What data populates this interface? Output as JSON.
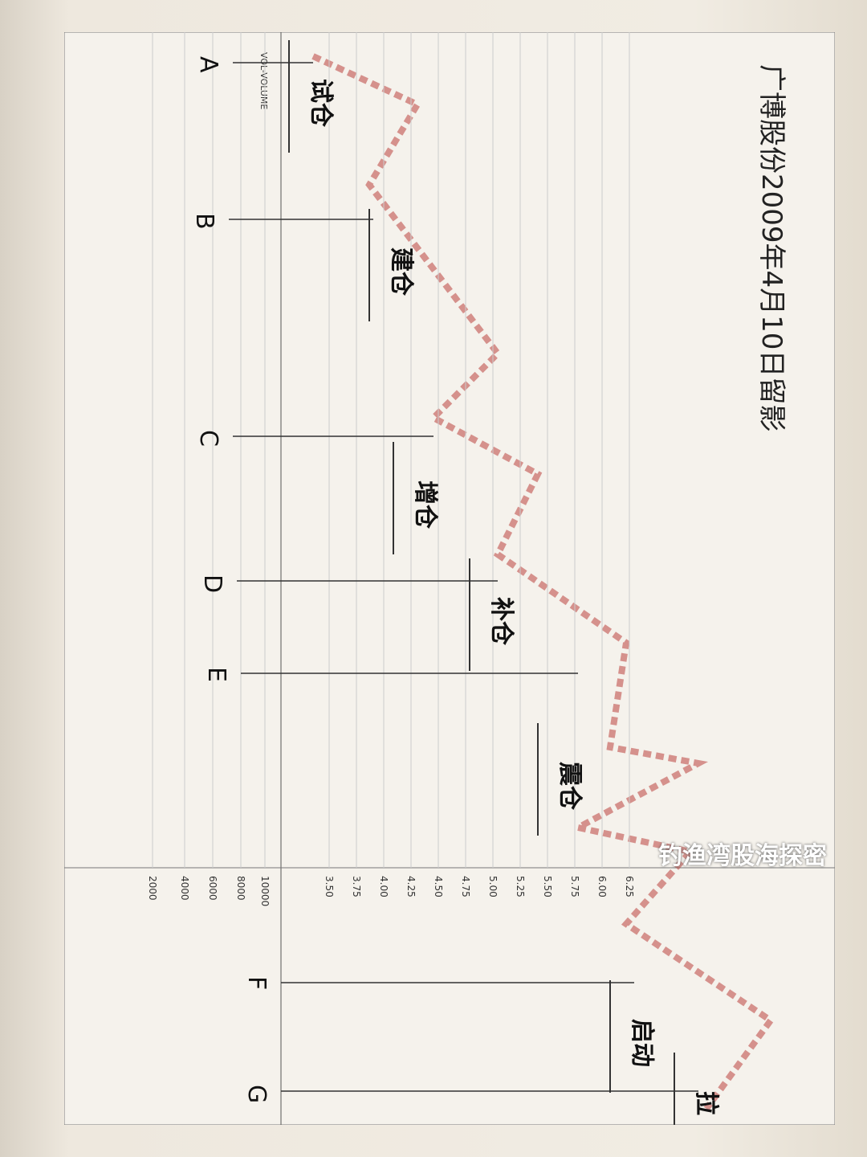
{
  "page": {
    "title": "广博股份2009年4月10日留影",
    "stages": [
      "试仓",
      "建仓",
      "增仓",
      "补仓",
      "震仓",
      "启动",
      "拉"
    ],
    "points": [
      "A",
      "B",
      "C",
      "D",
      "E",
      "F",
      "G"
    ],
    "price_ticks": [
      "3.50",
      "3.75",
      "4.00",
      "4.25",
      "4.50",
      "4.75",
      "5.00",
      "5.25",
      "5.50",
      "5.75",
      "6.00",
      "6.25"
    ],
    "volume_ticks": [
      "2000",
      "4000",
      "6000",
      "8000",
      "10000"
    ],
    "volume_label": "VOL-VOLUME",
    "watermark": "钓渔湾股海探密"
  }
}
